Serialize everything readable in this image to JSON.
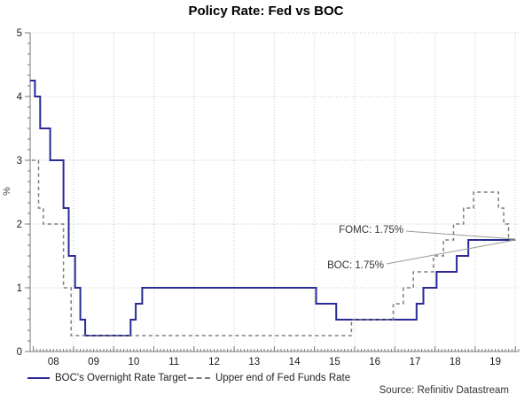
{
  "title": "Policy Rate: Fed vs BOC",
  "source": "Source: Refinitiv Datastream",
  "y_axis": {
    "label": "%",
    "tick_labels": [
      "0",
      "1",
      "2",
      "3",
      "4",
      "5"
    ]
  },
  "x_axis": {
    "tick_labels": [
      "08",
      "09",
      "10",
      "11",
      "12",
      "13",
      "14",
      "15",
      "16",
      "17",
      "18",
      "19"
    ]
  },
  "annotations": {
    "fomc": {
      "text": "FOMC: 1.75%"
    },
    "boc": {
      "text": "BOC: 1.75%"
    }
  },
  "legend": {
    "boc": {
      "label": "BOC's Overnight Rate Target",
      "style": "solid",
      "color": "#2a2a96"
    },
    "fed": {
      "label": "Upper end of Fed Funds Rate",
      "style": "dashed",
      "color": "#7d7d7d"
    }
  },
  "colors": {
    "boc_line": "#2a2a96",
    "fed_line": "#7d7d7d",
    "gridline": "#c9c9c9",
    "axis": "#777777",
    "tick_label": "#1a1a1a",
    "leader_line": "#999999"
  },
  "chart_data": {
    "type": "line",
    "title": "Policy Rate: Fed vs BOC",
    "xlabel": "",
    "ylabel": "%",
    "ylim": [
      0,
      5
    ],
    "xlim": [
      2007.92,
      2020.08
    ],
    "grid": true,
    "legend_position": "bottom",
    "x_tick_years": [
      2008,
      2009,
      2010,
      2011,
      2012,
      2013,
      2014,
      2015,
      2016,
      2017,
      2018,
      2019
    ],
    "t_end": 2020.0,
    "series": [
      {
        "name": "BOC's Overnight Rate Target",
        "style": "solid",
        "color": "#2a2a96",
        "steps": [
          [
            2007.92,
            4.25
          ],
          [
            2008.04,
            4.0
          ],
          [
            2008.17,
            3.5
          ],
          [
            2008.42,
            3.0
          ],
          [
            2008.75,
            2.25
          ],
          [
            2008.88,
            1.5
          ],
          [
            2009.04,
            1.0
          ],
          [
            2009.17,
            0.5
          ],
          [
            2009.29,
            0.25
          ],
          [
            2010.42,
            0.5
          ],
          [
            2010.55,
            0.75
          ],
          [
            2010.71,
            1.0
          ],
          [
            2015.04,
            0.75
          ],
          [
            2015.54,
            0.5
          ],
          [
            2017.54,
            0.75
          ],
          [
            2017.71,
            1.0
          ],
          [
            2018.04,
            1.25
          ],
          [
            2018.54,
            1.5
          ],
          [
            2018.83,
            1.75
          ]
        ]
      },
      {
        "name": "Upper end of Fed Funds Rate",
        "style": "dashed",
        "color": "#7d7d7d",
        "steps": [
          [
            2007.96,
            3.0
          ],
          [
            2008.13,
            2.25
          ],
          [
            2008.25,
            2.0
          ],
          [
            2008.75,
            1.0
          ],
          [
            2008.94,
            0.25
          ],
          [
            2015.92,
            0.5
          ],
          [
            2016.96,
            0.75
          ],
          [
            2017.21,
            1.0
          ],
          [
            2017.46,
            1.25
          ],
          [
            2017.96,
            1.5
          ],
          [
            2018.21,
            1.75
          ],
          [
            2018.46,
            2.0
          ],
          [
            2018.71,
            2.25
          ],
          [
            2018.96,
            2.5
          ],
          [
            2019.58,
            2.25
          ],
          [
            2019.71,
            2.0
          ],
          [
            2019.83,
            1.75
          ]
        ]
      }
    ],
    "end_values": {
      "FOMC": 1.75,
      "BOC": 1.75
    }
  }
}
